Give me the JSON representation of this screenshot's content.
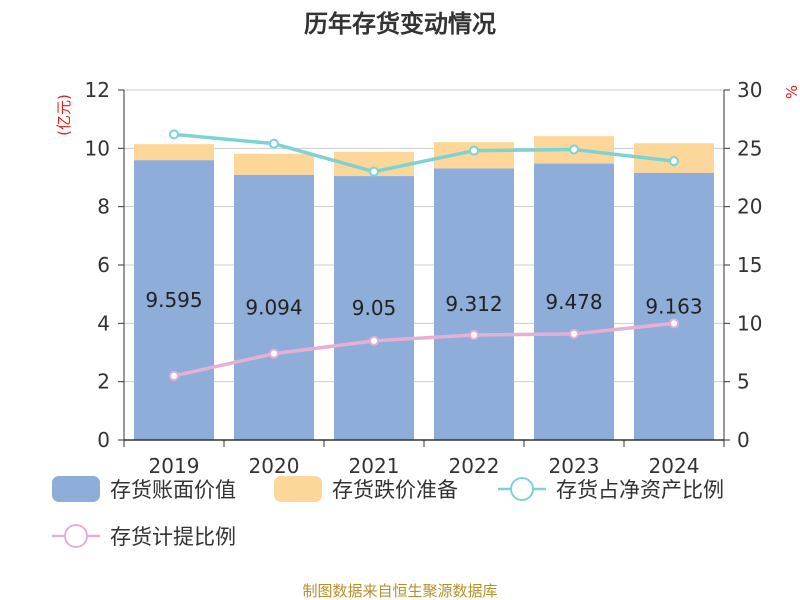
{
  "chart_data": {
    "type": "bar",
    "title": "历年存货变动情况",
    "categories": [
      "2019",
      "2020",
      "2021",
      "2022",
      "2023",
      "2024"
    ],
    "series": [
      {
        "name": "存货账面价值",
        "type": "bar",
        "stack": "inventory",
        "axis": "left",
        "values": [
          9.595,
          9.094,
          9.05,
          9.312,
          9.478,
          9.163
        ],
        "color": "#8eadd9"
      },
      {
        "name": "存货跌价准备",
        "type": "bar",
        "stack": "inventory",
        "axis": "left",
        "values": [
          0.55,
          0.72,
          0.83,
          0.9,
          0.94,
          1.01
        ],
        "color": "#fdd79a"
      },
      {
        "name": "存货占净资产比例",
        "type": "line",
        "axis": "right",
        "values": [
          26.2,
          25.4,
          23.0,
          24.8,
          24.9,
          23.9
        ],
        "color": "#7dd3d3"
      },
      {
        "name": "存货计提比例",
        "type": "line",
        "axis": "right",
        "values": [
          5.5,
          7.4,
          8.5,
          9.0,
          9.1,
          10.0
        ],
        "color": "#e6b0d6"
      }
    ],
    "data_labels": [
      "9.595",
      "9.094",
      "9.05",
      "9.312",
      "9.478",
      "9.163"
    ],
    "y_left": {
      "label": "(亿元)",
      "ylim": [
        0,
        12
      ],
      "ticks": [
        "0",
        "2",
        "4",
        "6",
        "8",
        "10",
        "12"
      ]
    },
    "y_right": {
      "label": "%",
      "ylim": [
        0,
        30
      ],
      "ticks": [
        "0",
        "5",
        "10",
        "15",
        "20",
        "25",
        "30"
      ]
    },
    "grid": true,
    "legend_position": "bottom"
  },
  "source": "制图数据来自恒生聚源数据库"
}
